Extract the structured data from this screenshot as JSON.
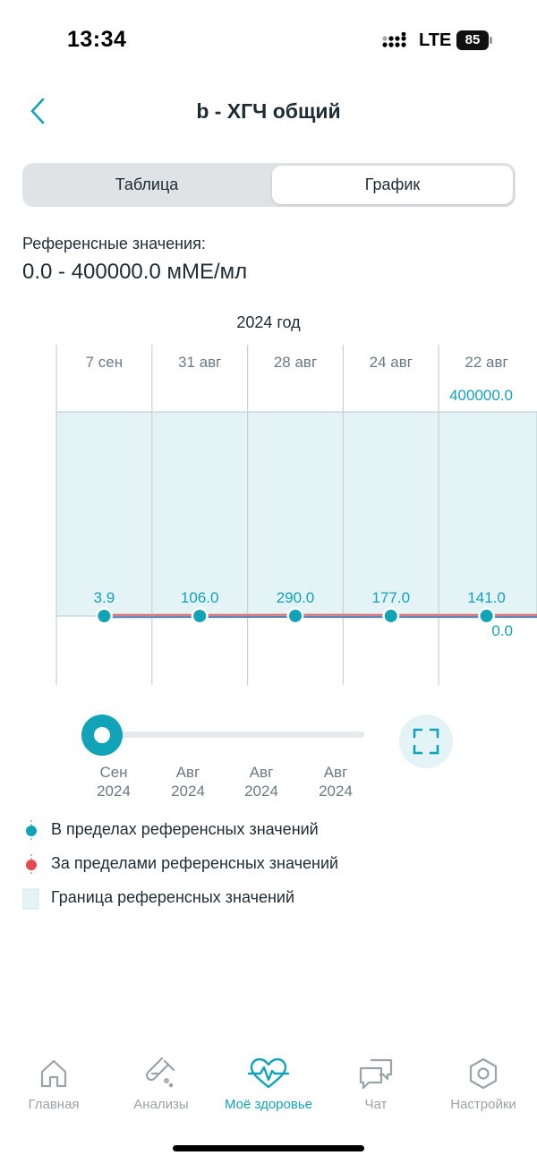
{
  "status_bar": {
    "time": "13:34",
    "network": "LTE",
    "battery": "85"
  },
  "header": {
    "title": "b - ХГЧ общий",
    "back_icon": "chevron-left-icon"
  },
  "tabs": [
    {
      "label": "Таблица",
      "selected": false
    },
    {
      "label": "График",
      "selected": true
    }
  ],
  "reference": {
    "label": "Референсные значения:",
    "value": "0.0 - 400000.0 мМЕ/мл"
  },
  "chart_year": "2024 год",
  "chart_data": {
    "type": "line",
    "x": [
      "7 сен",
      "31 авг",
      "28 авг",
      "24 авг",
      "22 авг"
    ],
    "values": [
      3.9,
      106.0,
      290.0,
      177.0,
      141.0
    ],
    "value_labels": [
      "3.9",
      "106.0",
      "290.0",
      "177.0",
      "141.0"
    ],
    "reference_range": [
      0.0,
      400000.0
    ],
    "reference_labels": {
      "max": "400000.0",
      "min": "0.0"
    },
    "point_status": "in_range",
    "colors": {
      "in_range": "#11a3b8",
      "out_of_range": "#e34b50",
      "band": "#e4f3f6",
      "line_red": "#e06a6a",
      "line_blue": "#5b7fb5"
    }
  },
  "slider": {
    "labels": [
      {
        "month": "Сен",
        "year": "2024"
      },
      {
        "month": "Авг",
        "year": "2024"
      },
      {
        "month": "Авг",
        "year": "2024"
      },
      {
        "month": "Авг",
        "year": "2024"
      }
    ],
    "expand_icon": "fullscreen-icon"
  },
  "legend": [
    {
      "icon": "in-range-dot-icon",
      "text": "В пределах референсных значений",
      "color": "#11a3b8"
    },
    {
      "icon": "out-of-range-dot-icon",
      "text": "За пределами референсных значений",
      "color": "#e34b50"
    },
    {
      "icon": "reference-band-icon",
      "text": "Граница референсных значений",
      "color": "#e4f3f6"
    }
  ],
  "tabbar": [
    {
      "icon": "home-icon",
      "label": "Главная",
      "active": false
    },
    {
      "icon": "test-tube-icon",
      "label": "Анализы",
      "active": false
    },
    {
      "icon": "heart-pulse-icon",
      "label": "Моё здоровье",
      "active": true
    },
    {
      "icon": "chat-icon",
      "label": "Чат",
      "active": false
    },
    {
      "icon": "settings-icon",
      "label": "Настройки",
      "active": false
    }
  ]
}
